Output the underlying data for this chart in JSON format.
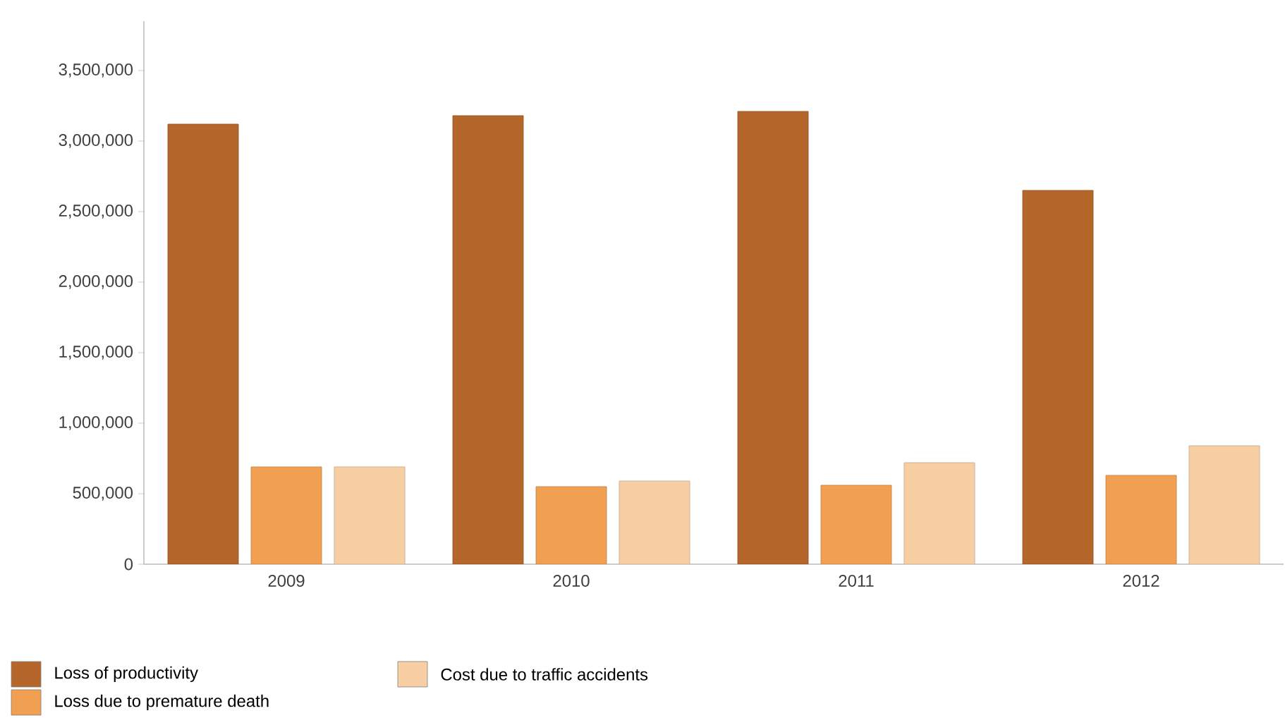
{
  "chart_data": {
    "type": "bar",
    "categories": [
      "2009",
      "2010",
      "2011",
      "2012"
    ],
    "series": [
      {
        "name": "Loss of productivity",
        "color": "#b5662a",
        "values": [
          3120000,
          3180000,
          3210000,
          2650000
        ]
      },
      {
        "name": "Loss due to premature death",
        "color": "#f0a050",
        "values": [
          690000,
          550000,
          560000,
          630000
        ]
      },
      {
        "name": "Cost due to traffic accidents",
        "color": "#f8cfa5",
        "values": [
          690000,
          590000,
          720000,
          840000
        ]
      }
    ],
    "ylim": [
      0,
      3850000
    ],
    "yticks": [
      {
        "value": 0,
        "label": "0"
      },
      {
        "value": 500000,
        "label": "500,000"
      },
      {
        "value": 1000000,
        "label": "1,000,000"
      },
      {
        "value": 1500000,
        "label": "1,500,000"
      },
      {
        "value": 2000000,
        "label": "2,000,000"
      },
      {
        "value": 2500000,
        "label": "2,500,000"
      },
      {
        "value": 3000000,
        "label": "3,000,000"
      },
      {
        "value": 3500000,
        "label": "3,500,000"
      }
    ],
    "grid": false,
    "legend": "bottom"
  }
}
